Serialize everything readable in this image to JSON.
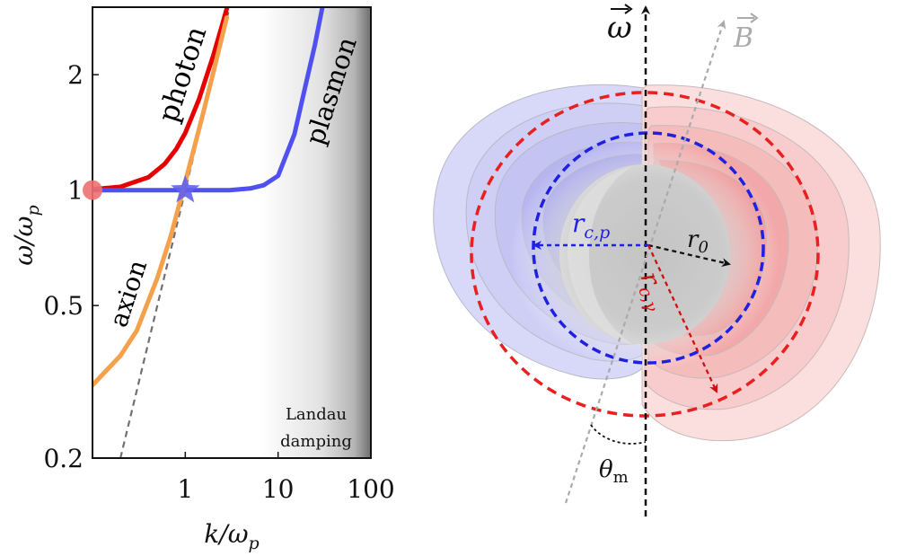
{
  "colors": {
    "photon": "#e60000",
    "plasmon": "#5050f0",
    "axion": "#f5a04a",
    "dashed_line": "#707070",
    "blue_region": "#4d4de6",
    "red_region": "#e63333",
    "neutron_star": "#c8c8c8"
  },
  "chart_data": {
    "type": "line",
    "xscale": "log",
    "yscale": "log",
    "xlim": [
      0.1,
      100
    ],
    "ylim": [
      0.2,
      3
    ],
    "xticks": [
      {
        "value": 1,
        "label": "1"
      },
      {
        "value": 10,
        "label": "10"
      },
      {
        "value": 100,
        "label": "100"
      }
    ],
    "yticks": [
      {
        "value": 0.2,
        "label": "0.2"
      },
      {
        "value": 0.5,
        "label": "0.5"
      },
      {
        "value": 1,
        "label": "1"
      },
      {
        "value": 2,
        "label": "2"
      }
    ],
    "xlabel": "k/ω_p",
    "ylabel": "ω/ω_p",
    "series": [
      {
        "name": "photon",
        "x": [
          0.1,
          0.2,
          0.4,
          0.6,
          0.8,
          1,
          1.4,
          2,
          2.6,
          3
        ],
        "y": [
          1.005,
          1.02,
          1.08,
          1.17,
          1.28,
          1.41,
          1.72,
          2.24,
          2.79,
          3.16
        ]
      },
      {
        "name": "plasmon",
        "x": [
          0.1,
          1,
          3,
          5,
          7,
          10,
          15,
          20,
          25,
          30
        ],
        "y": [
          1,
          1,
          1.0,
          1.01,
          1.03,
          1.09,
          1.4,
          1.9,
          2.4,
          3.0
        ]
      },
      {
        "name": "axion",
        "x": [
          0.1,
          0.2,
          0.3,
          0.5,
          0.7,
          1,
          1.5,
          2,
          2.8
        ],
        "y": [
          0.31,
          0.37,
          0.43,
          0.59,
          0.76,
          1.05,
          1.53,
          2.02,
          2.82
        ]
      }
    ],
    "reference_line": {
      "x": [
        0.2,
        3
      ],
      "y": [
        0.2,
        3
      ]
    },
    "markers": [
      {
        "name": "photon-plasma-frequency",
        "x": 0.1,
        "y": 1,
        "shape": "circle"
      },
      {
        "name": "resonance-crossing",
        "x": 1,
        "y": 1,
        "shape": "star"
      }
    ],
    "labels": {
      "photon": "photon",
      "plasmon": "plasmon",
      "axion": "axion",
      "landau_line1": "Landau",
      "landau_line2": "damping"
    }
  },
  "diagram": {
    "omega_label": "ω",
    "b_label": "B",
    "rcp_label_main": "r",
    "rcp_label_sub": "c,p",
    "r0_label_main": "r",
    "r0_label_sub": "0",
    "rcg_label_main": "r",
    "rcg_label_sub": "c,γ",
    "theta_label_main": "θ",
    "theta_label_sub": "m"
  }
}
